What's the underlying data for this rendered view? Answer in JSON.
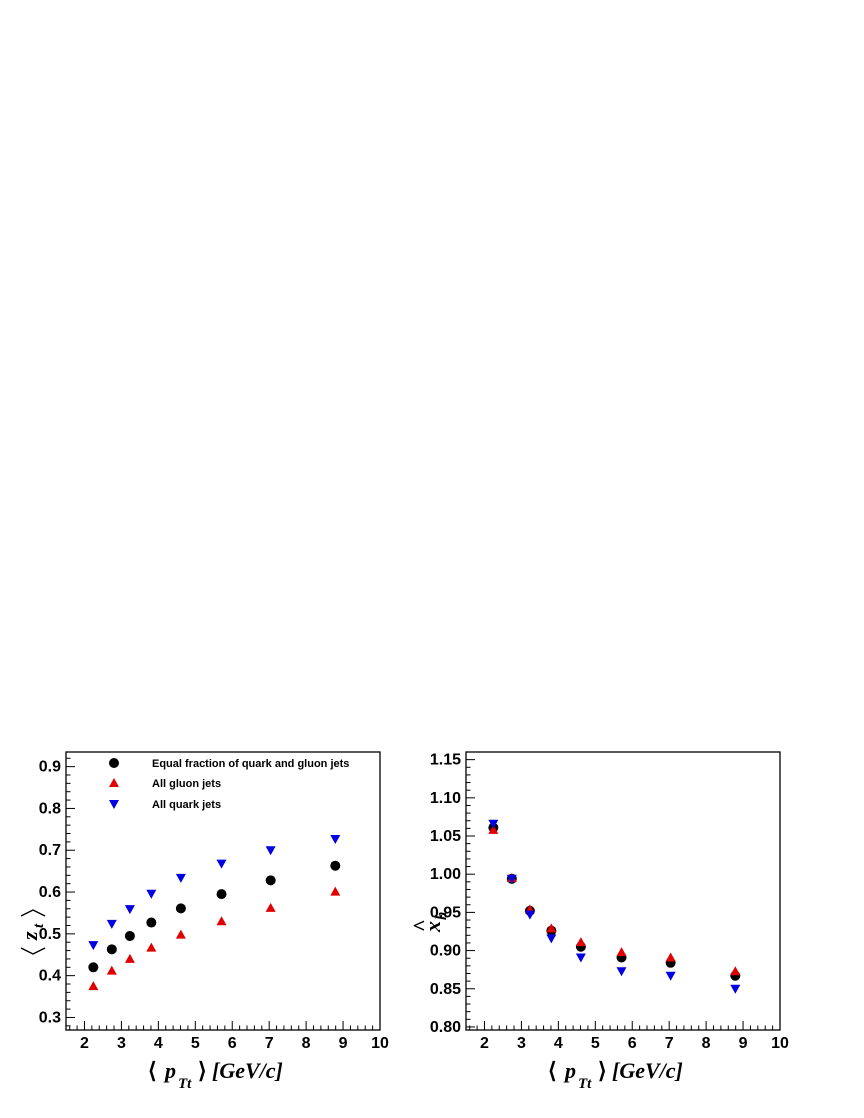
{
  "chart_data": [
    {
      "type": "scatter",
      "xlabel": "⟨ p_Tt ⟩ [GeV/c]",
      "ylabel": "⟨z_t⟩",
      "xlim": [
        1.5,
        10
      ],
      "ylim": [
        0.27,
        0.935
      ],
      "xticks": [
        "2",
        "3",
        "4",
        "5",
        "6",
        "7",
        "8",
        "9",
        "10"
      ],
      "yticks": [
        "0.3",
        "0.4",
        "0.5",
        "0.6",
        "0.7",
        "0.8",
        "0.9"
      ],
      "legend_position": "top-left",
      "series": [
        {
          "name": "Equal fraction of quark and gluon jets",
          "marker": "circle",
          "color": "#000000",
          "x": [
            2.24,
            2.74,
            3.23,
            3.81,
            4.61,
            5.71,
            7.04,
            8.79
          ],
          "y": [
            0.42,
            0.463,
            0.495,
            0.527,
            0.561,
            0.595,
            0.628,
            0.663
          ]
        },
        {
          "name": "All gluon jets",
          "marker": "triangle-up",
          "color": "#e00000",
          "x": [
            2.24,
            2.74,
            3.23,
            3.81,
            4.61,
            5.71,
            7.04,
            8.79
          ],
          "y": [
            0.375,
            0.412,
            0.44,
            0.467,
            0.498,
            0.53,
            0.562,
            0.601
          ]
        },
        {
          "name": "All quark jets",
          "marker": "triangle-down",
          "color": "#0000e0",
          "x": [
            2.24,
            2.74,
            3.23,
            3.81,
            4.61,
            5.71,
            7.04,
            8.79
          ],
          "y": [
            0.473,
            0.524,
            0.559,
            0.596,
            0.634,
            0.668,
            0.7,
            0.727
          ]
        }
      ]
    },
    {
      "type": "scatter",
      "xlabel": "⟨ p_Tt ⟩ [GeV/c]",
      "ylabel": "x̂_h",
      "xlim": [
        1.5,
        10
      ],
      "ylim": [
        0.796,
        1.16
      ],
      "xticks": [
        "2",
        "3",
        "4",
        "5",
        "6",
        "7",
        "8",
        "9",
        "10"
      ],
      "yticks": [
        "0.80",
        "0.85",
        "0.90",
        "0.95",
        "1.00",
        "1.05",
        "1.10",
        "1.15"
      ],
      "series": [
        {
          "name": "Equal fraction of quark and gluon jets",
          "marker": "circle",
          "color": "#000000",
          "x": [
            2.24,
            2.74,
            3.23,
            3.81,
            4.61,
            5.71,
            7.04,
            8.79
          ],
          "y": [
            1.061,
            0.994,
            0.952,
            0.926,
            0.905,
            0.891,
            0.884,
            0.867
          ]
        },
        {
          "name": "All gluon jets",
          "marker": "triangle-up",
          "color": "#e00000",
          "x": [
            2.24,
            2.74,
            3.23,
            3.81,
            4.61,
            5.71,
            7.04,
            8.79
          ],
          "y": [
            1.058,
            0.995,
            0.954,
            0.929,
            0.911,
            0.898,
            0.891,
            0.873
          ]
        },
        {
          "name": "All quark jets",
          "marker": "triangle-down",
          "color": "#0000e0",
          "x": [
            2.24,
            2.74,
            3.23,
            3.81,
            4.61,
            5.71,
            7.04,
            8.79
          ],
          "y": [
            1.066,
            0.994,
            0.947,
            0.916,
            0.891,
            0.873,
            0.867,
            0.85
          ]
        }
      ]
    }
  ],
  "labels": {
    "left_ylabel_main": "z",
    "left_ylabel_sub": "t",
    "right_ylabel_main": "x",
    "right_ylabel_hat": "^",
    "right_ylabel_sub": "h",
    "xlabel_left_angle": "⟨",
    "xlabel_main": "p",
    "xlabel_sub": "Tt",
    "xlabel_right_angle": "⟩",
    "xlabel_unit": "[GeV/c]"
  }
}
